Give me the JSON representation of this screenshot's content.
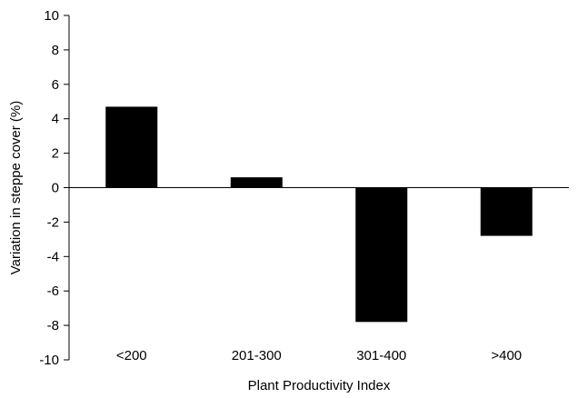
{
  "chart_data": {
    "type": "bar",
    "categories": [
      "<200",
      "201-300",
      "301-400",
      ">400"
    ],
    "series": [
      {
        "values": [
          4.7,
          0.6,
          -7.8,
          -2.8
        ]
      }
    ],
    "xlabel": "Plant Productivity Index",
    "ylabel": "Variation in steppe cover (%)",
    "ylim": [
      -10,
      10
    ],
    "yticks": [
      10,
      8,
      6,
      4,
      2,
      0,
      -2,
      -4,
      -6,
      -8,
      -10
    ],
    "grid": false,
    "legend": "none",
    "bar_color": "#000000",
    "axis_color": "#000000"
  }
}
